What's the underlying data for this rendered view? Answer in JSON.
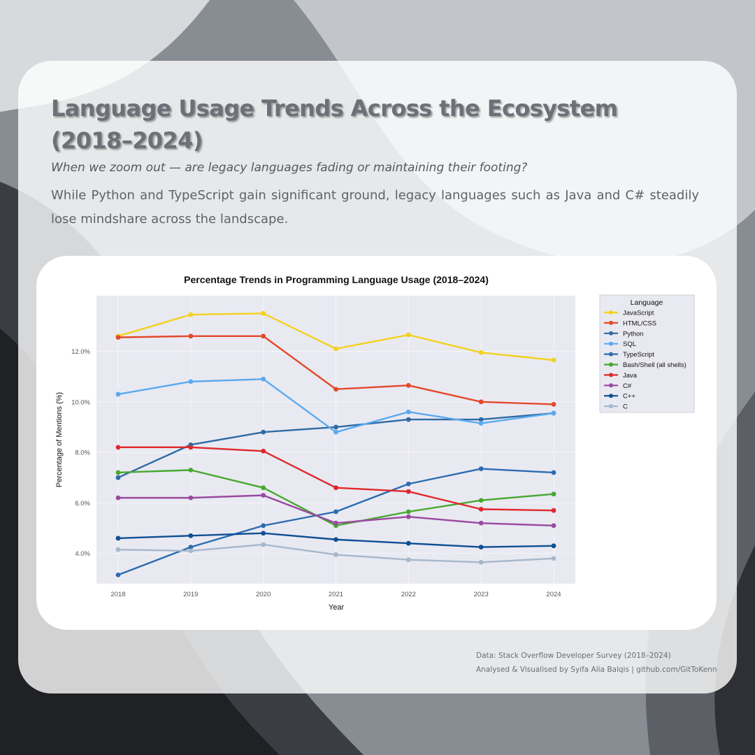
{
  "header": {
    "title": "Language Usage Trends Across the Ecosystem (2018–2024)",
    "subtitle": "When we zoom out — are legacy languages fading or maintaining their footing?",
    "description": "While Python and TypeScript gain significant ground, legacy languages such as Java and C# steadily lose mindshare across the landscape."
  },
  "footer": {
    "source": "Data: Stack Overflow Developer Survey (2018–2024)",
    "credit": "Analysed & Visualised by Syifa Alia Balqis | github.com/GitToKenn"
  },
  "chart_data": {
    "type": "line",
    "title": "Percentage Trends in Programming Language Usage (2018–2024)",
    "xlabel": "Year",
    "ylabel": "Percentage of Mentions (%)",
    "x": [
      "2018",
      "2019",
      "2020",
      "2021",
      "2022",
      "2023",
      "2024"
    ],
    "ylim": [
      2.8,
      14.2
    ],
    "yticks": [
      4.0,
      6.0,
      8.0,
      10.0,
      12.0
    ],
    "ytick_labels": [
      "4.0%",
      "6.0%",
      "8.0%",
      "10.0%",
      "12.0%"
    ],
    "grid": true,
    "legend": {
      "title": "Language",
      "placement": "right"
    },
    "series": [
      {
        "name": "JavaScript",
        "color": "#f2d21c",
        "values": [
          12.6,
          13.45,
          13.5,
          12.1,
          12.65,
          11.95,
          11.65
        ]
      },
      {
        "name": "HTML/CSS",
        "color": "#e5492a",
        "values": [
          12.55,
          12.6,
          12.6,
          10.5,
          10.65,
          10.0,
          9.9
        ]
      },
      {
        "name": "Python",
        "color": "#2e6aa3",
        "values": [
          7.0,
          8.3,
          8.8,
          9.0,
          9.3,
          9.3,
          9.55
        ]
      },
      {
        "name": "SQL",
        "color": "#5aaaf0",
        "values": [
          10.3,
          10.8,
          10.9,
          8.8,
          9.6,
          9.15,
          9.55
        ]
      },
      {
        "name": "TypeScript",
        "color": "#2b6cb0",
        "values": [
          3.15,
          4.25,
          5.1,
          5.65,
          6.75,
          7.35,
          7.2
        ]
      },
      {
        "name": "Bash/Shell (all shells)",
        "color": "#47a82e",
        "values": [
          7.2,
          7.3,
          6.6,
          5.1,
          5.65,
          6.1,
          6.35
        ]
      },
      {
        "name": "Java",
        "color": "#e0282a",
        "values": [
          8.2,
          8.2,
          8.05,
          6.6,
          6.45,
          5.75,
          5.7
        ]
      },
      {
        "name": "C#",
        "color": "#9a4a9e",
        "values": [
          6.2,
          6.2,
          6.3,
          5.2,
          5.45,
          5.2,
          5.1
        ]
      },
      {
        "name": "C++",
        "color": "#0e4f93",
        "values": [
          4.6,
          4.7,
          4.8,
          4.55,
          4.4,
          4.25,
          4.3
        ]
      },
      {
        "name": "C",
        "color": "#a6b8cc",
        "values": [
          4.15,
          4.1,
          4.35,
          3.95,
          3.75,
          3.65,
          3.8
        ]
      }
    ]
  }
}
